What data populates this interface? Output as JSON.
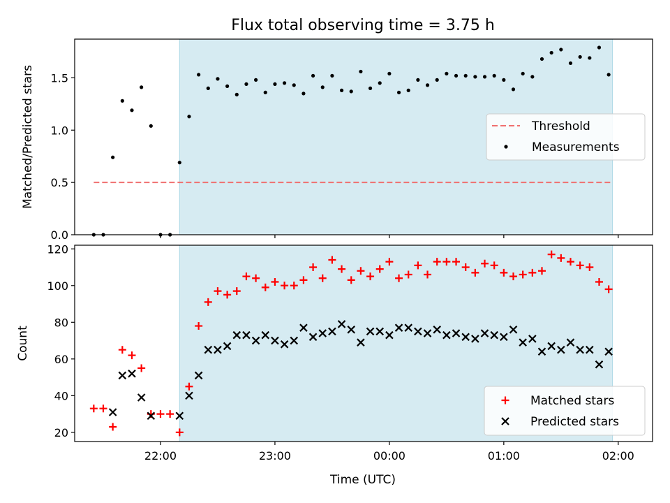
{
  "title": "Flux total observing time = 3.75 h",
  "xlabel": "Time (UTC)",
  "x_ticks": [
    "22:00",
    "23:00",
    "00:00",
    "01:00",
    "02:00"
  ],
  "colors": {
    "threshold": "#f07070",
    "shade": "#add8e6",
    "matched": "#ff0000",
    "predicted": "#000000",
    "measurement": "#000000"
  },
  "chart_data": [
    {
      "type": "scatter",
      "ylabel": "Matched/Predicted stars",
      "ylim": [
        0,
        1.87
      ],
      "y_ticks": [
        "0.0",
        "0.5",
        "1.0",
        "1.5"
      ],
      "xlim": [
        "21:15",
        "02:18"
      ],
      "shaded_span": [
        "22:10",
        "01:57"
      ],
      "threshold": {
        "name": "Threshold",
        "y": 0.5,
        "x": [
          "21:25",
          "01:57"
        ]
      },
      "legend": {
        "position": "center-right",
        "entries": [
          "Threshold",
          "Measurements"
        ]
      },
      "series": [
        {
          "name": "Measurements",
          "x": [
            "21:25",
            "21:30",
            "21:35",
            "21:40",
            "21:45",
            "21:50",
            "21:55",
            "22:00",
            "22:05",
            "22:10",
            "22:15",
            "22:20",
            "22:25",
            "22:30",
            "22:35",
            "22:40",
            "22:45",
            "22:50",
            "22:55",
            "23:00",
            "23:05",
            "23:10",
            "23:15",
            "23:20",
            "23:25",
            "23:30",
            "23:35",
            "23:40",
            "23:45",
            "23:50",
            "23:55",
            "00:00",
            "00:05",
            "00:10",
            "00:15",
            "00:20",
            "00:25",
            "00:30",
            "00:35",
            "00:40",
            "00:45",
            "00:50",
            "00:55",
            "01:00",
            "01:05",
            "01:10",
            "01:15",
            "01:20",
            "01:25",
            "01:30",
            "01:35",
            "01:40",
            "01:45",
            "01:50",
            "01:55"
          ],
          "values": [
            0.0,
            0.0,
            0.74,
            1.28,
            1.19,
            1.41,
            1.04,
            0.0,
            0.0,
            0.69,
            1.13,
            1.53,
            1.4,
            1.49,
            1.42,
            1.34,
            1.44,
            1.48,
            1.36,
            1.44,
            1.45,
            1.43,
            1.35,
            1.52,
            1.41,
            1.52,
            1.38,
            1.37,
            1.56,
            1.4,
            1.45,
            1.54,
            1.36,
            1.38,
            1.48,
            1.43,
            1.48,
            1.54,
            1.52,
            1.52,
            1.51,
            1.51,
            1.52,
            1.48,
            1.39,
            1.54,
            1.51,
            1.68,
            1.74,
            1.77,
            1.64,
            1.7,
            1.69,
            1.79,
            1.53
          ]
        }
      ]
    },
    {
      "type": "scatter",
      "ylabel": "Count",
      "ylim": [
        15,
        122
      ],
      "y_ticks": [
        "20",
        "40",
        "60",
        "80",
        "100",
        "120"
      ],
      "xlim": [
        "21:15",
        "02:18"
      ],
      "shaded_span": [
        "22:10",
        "01:57"
      ],
      "legend": {
        "position": "lower-right",
        "entries": [
          "Matched stars",
          "Predicted stars"
        ]
      },
      "series": [
        {
          "name": "Matched stars",
          "x": [
            "21:25",
            "21:30",
            "21:35",
            "21:40",
            "21:45",
            "21:50",
            "21:55",
            "22:00",
            "22:05",
            "22:10",
            "22:15",
            "22:20",
            "22:25",
            "22:30",
            "22:35",
            "22:40",
            "22:45",
            "22:50",
            "22:55",
            "23:00",
            "23:05",
            "23:10",
            "23:15",
            "23:20",
            "23:25",
            "23:30",
            "23:35",
            "23:40",
            "23:45",
            "23:50",
            "23:55",
            "00:00",
            "00:05",
            "00:10",
            "00:15",
            "00:20",
            "00:25",
            "00:30",
            "00:35",
            "00:40",
            "00:45",
            "00:50",
            "00:55",
            "01:00",
            "01:05",
            "01:10",
            "01:15",
            "01:20",
            "01:25",
            "01:30",
            "01:35",
            "01:40",
            "01:45",
            "01:50",
            "01:55"
          ],
          "values": [
            33,
            33,
            23,
            65,
            62,
            55,
            30,
            30,
            30,
            20,
            45,
            78,
            91,
            97,
            95,
            97,
            105,
            104,
            99,
            102,
            100,
            100,
            103,
            110,
            104,
            114,
            109,
            103,
            108,
            105,
            109,
            113,
            104,
            106,
            111,
            106,
            113,
            113,
            113,
            110,
            107,
            112,
            111,
            107,
            105,
            106,
            107,
            108,
            117,
            115,
            113,
            111,
            110,
            102,
            98
          ]
        },
        {
          "name": "Predicted stars",
          "x": [
            "21:35",
            "21:40",
            "21:45",
            "21:50",
            "21:55",
            "22:10",
            "22:15",
            "22:20",
            "22:25",
            "22:30",
            "22:35",
            "22:40",
            "22:45",
            "22:50",
            "22:55",
            "23:00",
            "23:05",
            "23:10",
            "23:15",
            "23:20",
            "23:25",
            "23:30",
            "23:35",
            "23:40",
            "23:45",
            "23:50",
            "23:55",
            "00:00",
            "00:05",
            "00:10",
            "00:15",
            "00:20",
            "00:25",
            "00:30",
            "00:35",
            "00:40",
            "00:45",
            "00:50",
            "00:55",
            "01:00",
            "01:05",
            "01:10",
            "01:15",
            "01:20",
            "01:25",
            "01:30",
            "01:35",
            "01:40",
            "01:45",
            "01:50",
            "01:55"
          ],
          "values": [
            31,
            51,
            52,
            39,
            29,
            29,
            40,
            51,
            65,
            65,
            67,
            73,
            73,
            70,
            73,
            70,
            68,
            70,
            77,
            72,
            74,
            75,
            79,
            76,
            69,
            75,
            75,
            73,
            77,
            77,
            75,
            74,
            76,
            73,
            74,
            72,
            71,
            74,
            73,
            72,
            76,
            69,
            71,
            64,
            67,
            65,
            69,
            65,
            65,
            57,
            64
          ]
        }
      ]
    }
  ]
}
